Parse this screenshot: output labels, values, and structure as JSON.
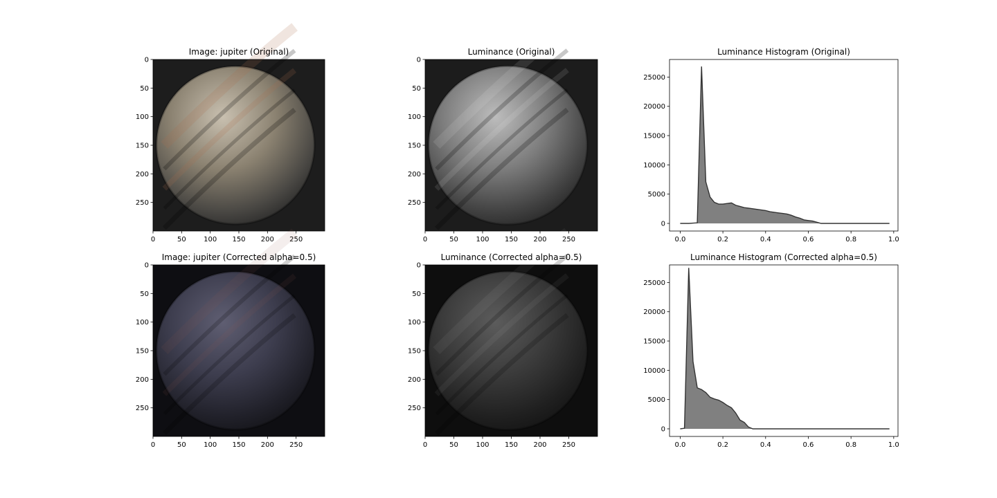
{
  "figure": {
    "image_name": "jupiter",
    "colors": {
      "bg_original": "#1d1d1d",
      "bg_corrected": "#0e0e12",
      "lum_bg_original": "#1c1c1c",
      "lum_bg_corrected": "#0e0e0e",
      "hist_fill": "#808080",
      "hist_line": "#333333"
    }
  },
  "chart_data": [
    {
      "type": "image",
      "title": "Image: jupiter (Original)",
      "xticks": [
        0,
        50,
        100,
        150,
        200,
        250
      ],
      "yticks": [
        0,
        50,
        100,
        150,
        200,
        250
      ],
      "xlim": [
        0,
        300
      ],
      "ylim": [
        300,
        0
      ],
      "channel": "color",
      "variant": "original"
    },
    {
      "type": "image",
      "title": "Luminance (Original)",
      "xticks": [
        0,
        50,
        100,
        150,
        200,
        250
      ],
      "yticks": [
        0,
        50,
        100,
        150,
        200,
        250
      ],
      "xlim": [
        0,
        300
      ],
      "ylim": [
        300,
        0
      ],
      "channel": "luminance",
      "variant": "original"
    },
    {
      "type": "area",
      "title": "Luminance Histogram (Original)",
      "xticks": [
        "0.0",
        "0.2",
        "0.4",
        "0.6",
        "0.8",
        "1.0"
      ],
      "yticks": [
        0,
        5000,
        10000,
        15000,
        20000,
        25000
      ],
      "xlim": [
        -0.05,
        1.02
      ],
      "ylim": [
        -1300,
        28000
      ],
      "x": [
        0.0,
        0.04,
        0.08,
        0.1,
        0.12,
        0.14,
        0.16,
        0.18,
        0.2,
        0.22,
        0.24,
        0.26,
        0.28,
        0.3,
        0.32,
        0.34,
        0.36,
        0.38,
        0.4,
        0.42,
        0.44,
        0.46,
        0.48,
        0.5,
        0.52,
        0.54,
        0.56,
        0.58,
        0.6,
        0.62,
        0.64,
        0.66,
        0.7,
        0.8,
        0.9,
        0.98
      ],
      "values": [
        0,
        0,
        100,
        26800,
        7100,
        4500,
        3600,
        3300,
        3300,
        3400,
        3500,
        3100,
        2900,
        2700,
        2600,
        2500,
        2400,
        2300,
        2200,
        2000,
        1900,
        1800,
        1700,
        1600,
        1400,
        1100,
        900,
        600,
        500,
        400,
        200,
        0,
        0,
        0,
        0,
        0
      ]
    },
    {
      "type": "image",
      "title": "Image: jupiter (Corrected alpha=0.5)",
      "xticks": [
        0,
        50,
        100,
        150,
        200,
        250
      ],
      "yticks": [
        0,
        50,
        100,
        150,
        200,
        250
      ],
      "xlim": [
        0,
        300
      ],
      "ylim": [
        300,
        0
      ],
      "channel": "color",
      "variant": "corrected"
    },
    {
      "type": "image",
      "title": "Luminance (Corrected alpha=0.5)",
      "xticks": [
        0,
        50,
        100,
        150,
        200,
        250
      ],
      "yticks": [
        0,
        50,
        100,
        150,
        200,
        250
      ],
      "xlim": [
        0,
        300
      ],
      "ylim": [
        300,
        0
      ],
      "channel": "luminance",
      "variant": "corrected"
    },
    {
      "type": "area",
      "title": "Luminance Histogram (Corrected alpha=0.5)",
      "xticks": [
        "0.0",
        "0.2",
        "0.4",
        "0.6",
        "0.8",
        "1.0"
      ],
      "yticks": [
        0,
        5000,
        10000,
        15000,
        20000,
        25000
      ],
      "xlim": [
        -0.05,
        1.02
      ],
      "ylim": [
        -1300,
        28000
      ],
      "x": [
        0.0,
        0.02,
        0.04,
        0.06,
        0.08,
        0.1,
        0.12,
        0.14,
        0.16,
        0.18,
        0.2,
        0.22,
        0.24,
        0.26,
        0.28,
        0.3,
        0.32,
        0.34,
        0.36,
        0.4,
        0.5,
        0.6,
        0.7,
        0.8,
        0.9,
        0.98
      ],
      "values": [
        0,
        100,
        27500,
        11500,
        7000,
        6700,
        6200,
        5400,
        5100,
        4900,
        4500,
        4000,
        3600,
        2700,
        1500,
        1100,
        300,
        0,
        0,
        0,
        0,
        0,
        0,
        0,
        0,
        0
      ]
    }
  ]
}
